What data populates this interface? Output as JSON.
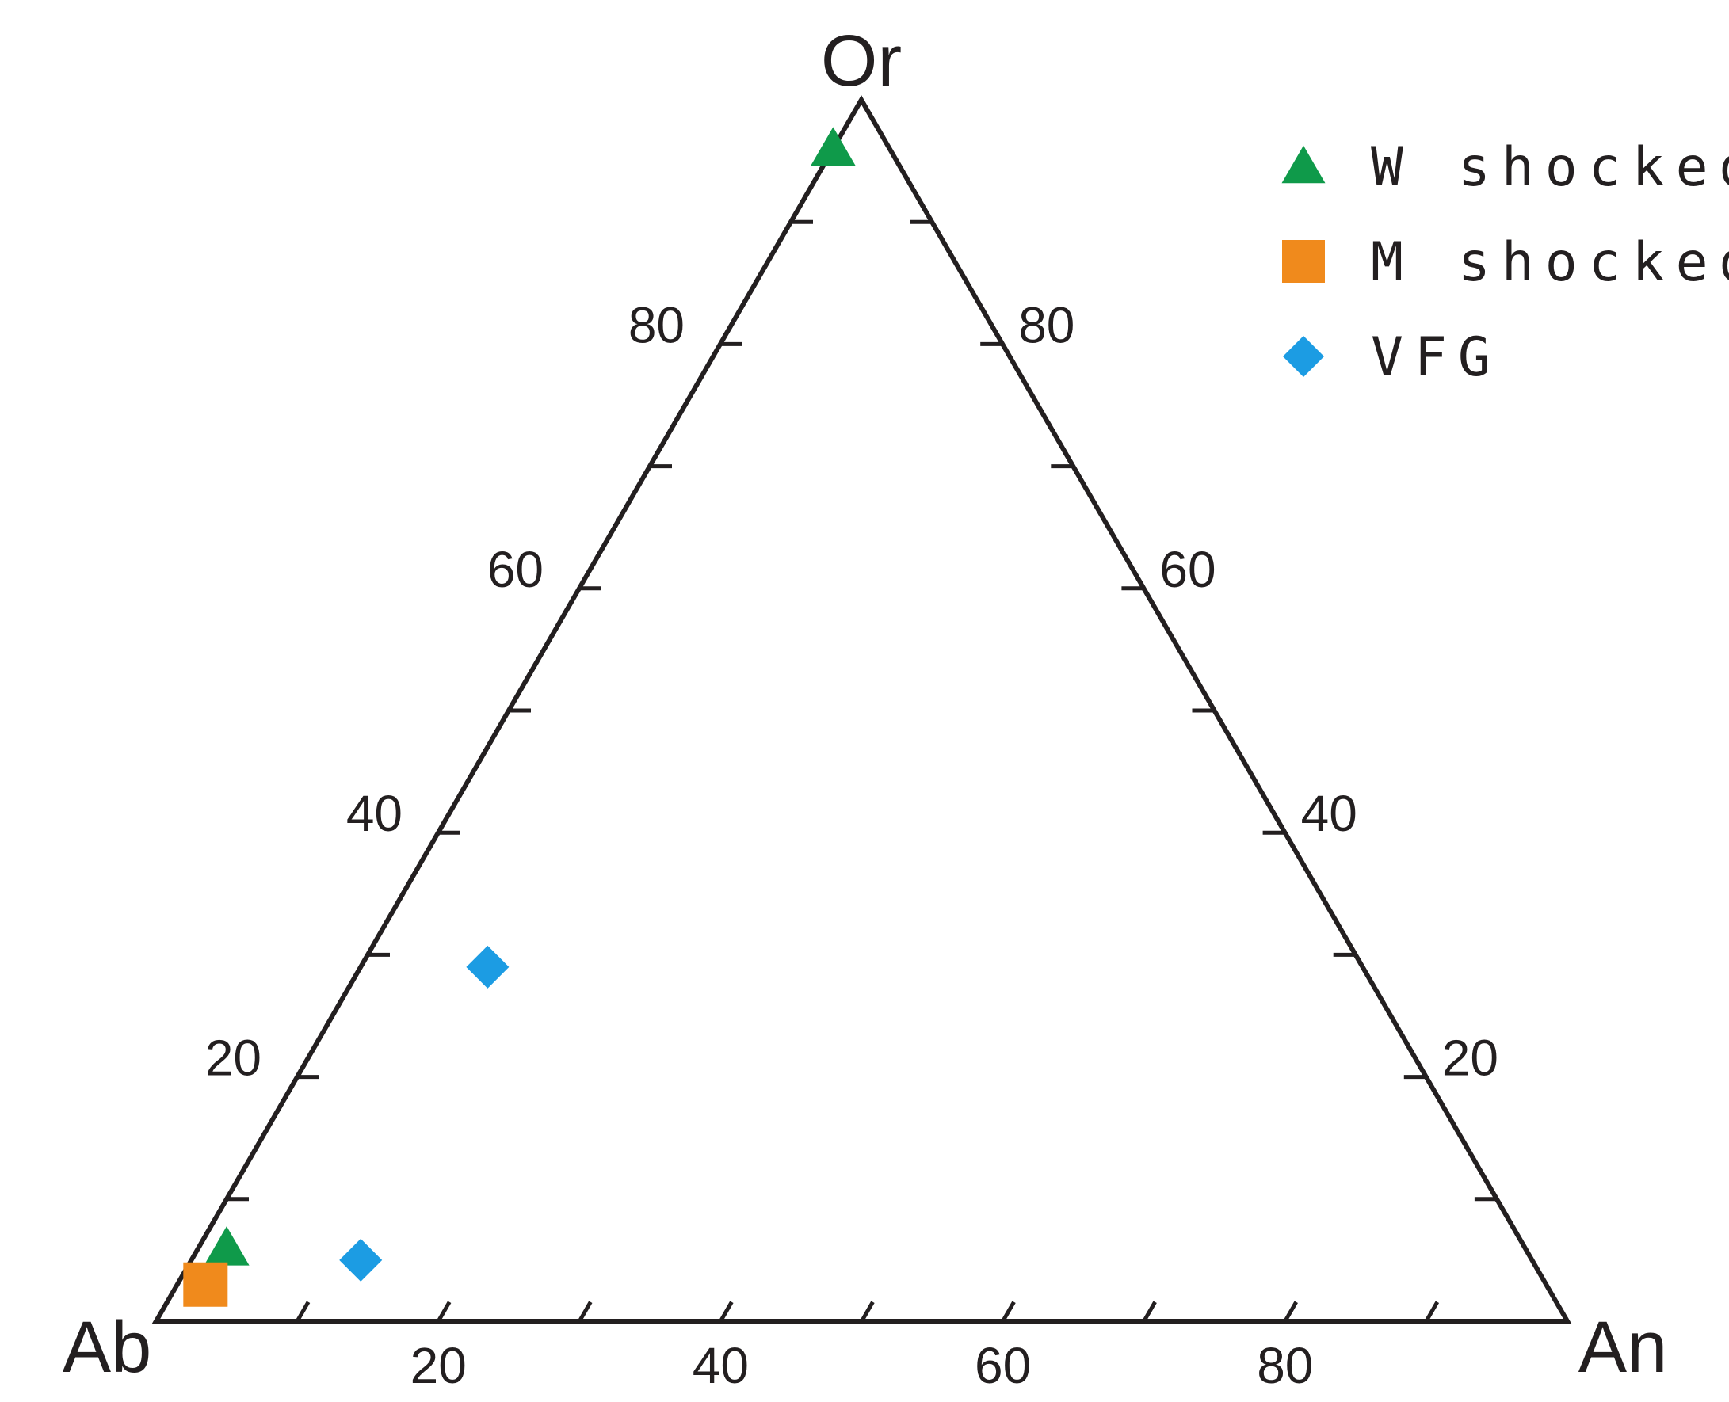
{
  "chart_data": {
    "type": "scatter",
    "subtype": "ternary",
    "vertices": {
      "bottom_left": "Ab",
      "bottom_right": "An",
      "top": "Or"
    },
    "axis_ticks": [
      20,
      40,
      60,
      80
    ],
    "minor_ticks": [
      10,
      30,
      50,
      70,
      90
    ],
    "range": [
      0,
      100
    ],
    "grid": false,
    "legend_position": "top-right",
    "series": [
      {
        "name": "W shocked",
        "marker": "triangle",
        "color": "#0f9a4a",
        "points": [
          {
            "Ab": 4,
            "An": 0,
            "Or": 96
          },
          {
            "Ab": 92,
            "An": 2,
            "Or": 6
          }
        ]
      },
      {
        "name": "M shocked",
        "marker": "square",
        "color": "#f08a1c",
        "points": [
          {
            "Ab": 95,
            "An": 2,
            "Or": 3
          }
        ]
      },
      {
        "name": "VFG",
        "marker": "diamond",
        "color": "#1c9ce3",
        "points": [
          {
            "Ab": 83,
            "An": 12,
            "Or": 5
          },
          {
            "Ab": 62,
            "An": 9,
            "Or": 29
          }
        ]
      }
    ]
  }
}
